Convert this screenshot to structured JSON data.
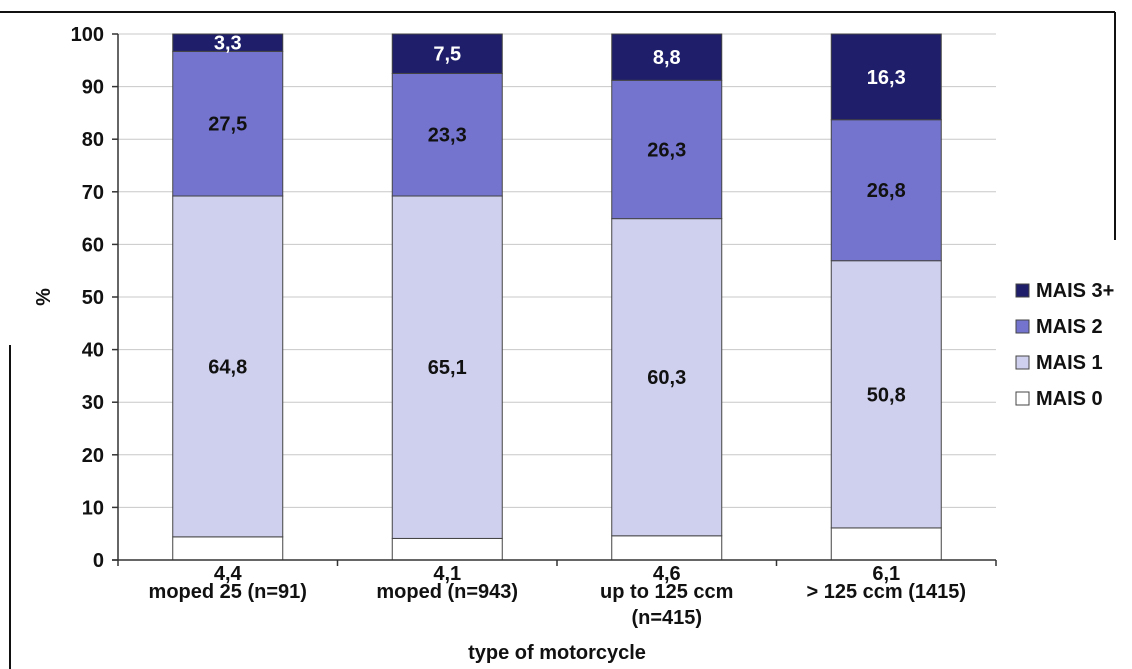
{
  "chart_data": {
    "type": "bar",
    "stacked": true,
    "categories": [
      [
        "moped 25 (n=91)"
      ],
      [
        "moped (n=943)"
      ],
      [
        "up to 125 ccm",
        "(n=415)"
      ],
      [
        "> 125 ccm (1415)"
      ]
    ],
    "series": [
      {
        "name": "MAIS 0",
        "color": "#ffffff",
        "label_color": "#111111",
        "values": [
          4.4,
          4.1,
          4.6,
          6.1
        ],
        "labels": [
          "4,4",
          "4,1",
          "4,6",
          "6,1"
        ]
      },
      {
        "name": "MAIS 1",
        "color": "#cfd0ee",
        "label_color": "#111111",
        "values": [
          64.8,
          65.1,
          60.3,
          50.8
        ],
        "labels": [
          "64,8",
          "65,1",
          "60,3",
          "50,8"
        ]
      },
      {
        "name": "MAIS 2",
        "color": "#7474cf",
        "label_color": "#111111",
        "values": [
          27.5,
          23.3,
          26.3,
          26.8
        ],
        "labels": [
          "27,5",
          "23,3",
          "26,3",
          "26,8"
        ]
      },
      {
        "name": "MAIS 3+",
        "color": "#1e1e6a",
        "label_color": "#ffffff",
        "values": [
          3.3,
          7.5,
          8.8,
          16.3
        ],
        "labels": [
          "3,3",
          "7,5",
          "8,8",
          "16,3"
        ]
      }
    ],
    "legend_order": [
      "MAIS 3+",
      "MAIS 2",
      "MAIS 1",
      "MAIS 0"
    ],
    "legend_position": "right",
    "xlabel": "type of motorcycle",
    "ylabel": "%",
    "ylim": [
      0,
      100
    ],
    "yticks": [
      0,
      10,
      20,
      30,
      40,
      50,
      60,
      70,
      80,
      90,
      100
    ],
    "grid": true
  }
}
